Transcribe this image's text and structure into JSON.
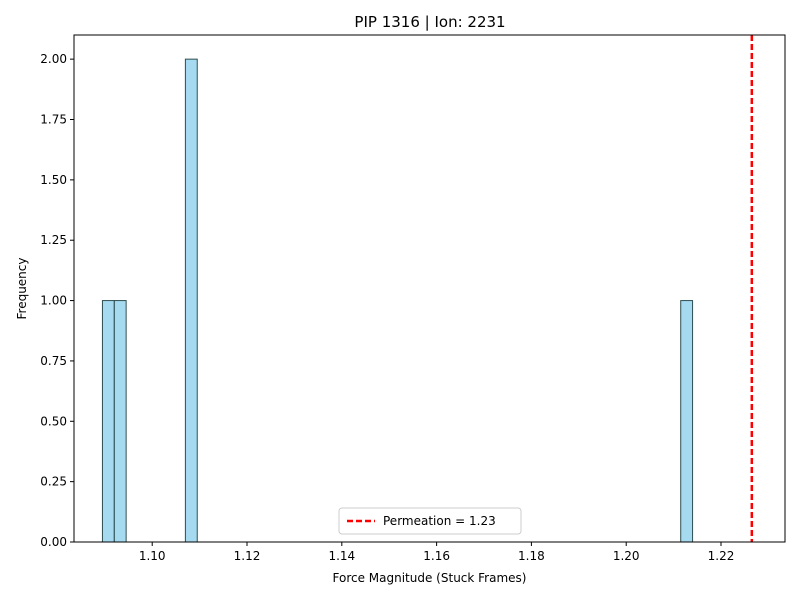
{
  "chart_data": {
    "type": "bar",
    "title": "PIP 1316 | Ion: 2231",
    "xlabel": "Force Magnitude (Stuck Frames)",
    "ylabel": "Frequency",
    "xlim": [
      1.0835,
      1.2335
    ],
    "ylim": [
      0,
      2.1
    ],
    "bin_width": 0.0025,
    "bars": [
      {
        "x0": 1.0895,
        "x1": 1.092,
        "value": 1
      },
      {
        "x0": 1.092,
        "x1": 1.0945,
        "value": 1
      },
      {
        "x0": 1.107,
        "x1": 1.1095,
        "value": 2
      },
      {
        "x0": 1.2115,
        "x1": 1.214,
        "value": 1
      }
    ],
    "x_ticks": [
      1.1,
      1.12,
      1.14,
      1.16,
      1.18,
      1.2,
      1.22
    ],
    "x_tick_labels": [
      "1.10",
      "1.12",
      "1.14",
      "1.16",
      "1.18",
      "1.20",
      "1.22"
    ],
    "y_ticks": [
      0,
      0.25,
      0.5,
      0.75,
      1.0,
      1.25,
      1.5,
      1.75,
      2.0
    ],
    "y_tick_labels": [
      "0.00",
      "0.25",
      "0.50",
      "0.75",
      "1.00",
      "1.25",
      "1.50",
      "1.75",
      "2.00"
    ],
    "vline": {
      "x": 1.2265,
      "label": "Permeation = 1.23",
      "color": "#ff0000",
      "style": "dashed"
    },
    "bar_color": "#87ceeb",
    "bar_edge_color": "#2f4f4f",
    "legend_position": "lower-center",
    "grid": false
  }
}
